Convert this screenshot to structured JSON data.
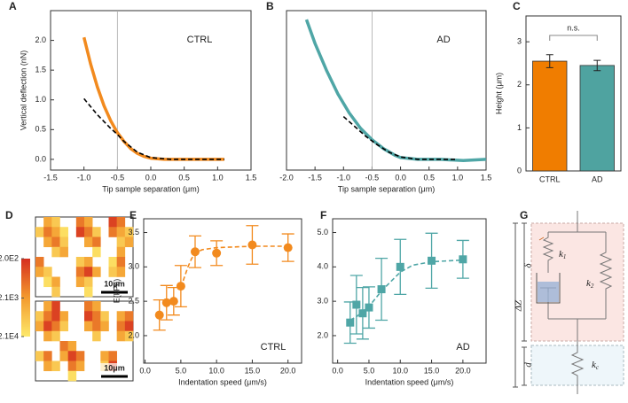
{
  "chart_data": [
    {
      "panel": "A",
      "type": "line",
      "annotation": "CTRL",
      "xlabel": "Tip sample separation (μm)",
      "ylabel": "Vertical deflection (nN)",
      "xlim": [
        -1.5,
        1.5
      ],
      "xticks": [
        -1.5,
        {
          "value": -1,
          "label": "-1.0"
        },
        -0.5,
        {
          "value": 0,
          "label": "0.0"
        },
        0.5,
        {
          "value": 1,
          "label": "1.0"
        },
        1.5
      ],
      "ylim": [
        -0.18,
        2.5
      ],
      "yticks": [
        {
          "value": 0,
          "label": "0.0"
        },
        0.5,
        {
          "value": 1,
          "label": "1.0"
        },
        1.5,
        {
          "value": 2,
          "label": "2.0"
        }
      ],
      "vline": -0.5,
      "series": [
        {
          "color": "#f28a1e",
          "x": [
            -1,
            -0.9,
            -0.8,
            -0.7,
            -0.6,
            -0.5,
            -0.4,
            -0.3,
            -0.2,
            -0.1,
            0,
            0.2,
            0.5,
            0.8,
            1.1
          ],
          "values": [
            2.05,
            1.6,
            1.22,
            0.9,
            0.65,
            0.45,
            0.3,
            0.18,
            0.1,
            0.05,
            0.02,
            0,
            0,
            0,
            0
          ]
        },
        {
          "color": "#000000",
          "dash": true,
          "x": [
            -1,
            -0.8,
            -0.6,
            -0.5,
            -0.4,
            -0.2,
            0,
            0.3,
            1.1
          ],
          "values": [
            1.02,
            0.75,
            0.52,
            0.42,
            0.3,
            0.12,
            0.03,
            0,
            0
          ]
        }
      ]
    },
    {
      "panel": "B",
      "type": "line",
      "annotation": "AD",
      "xlabel": "Tip sample separation (μm)",
      "xlim": [
        -2,
        1.5
      ],
      "xticks": [
        {
          "value": -2,
          "label": "-2.0"
        },
        -1.5,
        {
          "value": -1,
          "label": "-1.0"
        },
        -0.5,
        {
          "value": 0,
          "label": "0.0"
        },
        0.5,
        {
          "value": 1,
          "label": "1.0"
        },
        1.5
      ],
      "ylim": [
        -0.18,
        2.5
      ],
      "vline": -0.5,
      "series": [
        {
          "color": "#4fa6a6",
          "x": [
            -1.65,
            -1.5,
            -1.3,
            -1.1,
            -0.9,
            -0.7,
            -0.5,
            -0.3,
            -0.1,
            0,
            0.3,
            0.7,
            1.1,
            1.5
          ],
          "values": [
            2.35,
            1.95,
            1.5,
            1.1,
            0.78,
            0.52,
            0.33,
            0.18,
            0.07,
            0.03,
            0,
            0,
            -0.02,
            0
          ]
        },
        {
          "color": "#000000",
          "dash": true,
          "x": [
            -1,
            -0.8,
            -0.6,
            -0.4,
            -0.2,
            0,
            0.3,
            1
          ],
          "values": [
            0.72,
            0.55,
            0.38,
            0.24,
            0.12,
            0.04,
            0,
            0
          ]
        }
      ]
    },
    {
      "panel": "C",
      "type": "bar",
      "annotation": "n.s.",
      "ylabel": "Height (μm)",
      "categories": [
        "CTRL",
        "AD"
      ],
      "values": [
        2.55,
        2.45
      ],
      "errors": [
        0.15,
        0.12
      ],
      "colors": [
        "#f07d00",
        "#4fa3a0"
      ],
      "ylim": [
        0,
        3.6
      ],
      "yticks": [
        0,
        1,
        2,
        3
      ]
    },
    {
      "panel": "D",
      "type": "heatmap",
      "zlim": [
        200,
        21000
      ],
      "log": true,
      "colors": [
        "#d62f1f",
        "#f39a2e",
        "#fde96b"
      ],
      "colorbar_ticks": [
        {
          "value": 200,
          "label": "2.0E2"
        },
        {
          "value": 2100,
          "label": "2.1E3"
        },
        {
          "value": 21000,
          "label": "2.1E4"
        }
      ],
      "maps": [
        {
          "scalebar": "10μm",
          "grid": [
            [
              null,
              3000,
              8000,
              null,
              null,
              1000,
              3000,
              null,
              null,
              300,
              1000,
              null
            ],
            [
              8000,
              1000,
              3000,
              15000,
              null,
              300,
              1000,
              8000,
              null,
              1000,
              3000,
              8000
            ],
            [
              null,
              3000,
              1000,
              8000,
              null,
              null,
              3000,
              1000,
              null,
              null,
              8000,
              3000
            ],
            [
              null,
              null,
              8000,
              3000,
              null,
              null,
              null,
              15000,
              null,
              null,
              3000,
              null
            ],
            [
              1000,
              null,
              null,
              null,
              null,
              8000,
              3000,
              null,
              null,
              15000,
              1000,
              null
            ],
            [
              3000,
              8000,
              null,
              null,
              null,
              1000,
              300,
              3000,
              null,
              8000,
              3000,
              null
            ],
            [
              null,
              15000,
              3000,
              null,
              null,
              3000,
              8000,
              null,
              null,
              null,
              null,
              null
            ],
            [
              null,
              null,
              8000,
              null,
              null,
              null,
              15000,
              null,
              null,
              null,
              null,
              null
            ]
          ]
        },
        {
          "scalebar": "10μm",
          "grid": [
            [
              null,
              3000,
              300,
              null,
              null,
              null,
              1000,
              3000,
              null,
              null,
              null,
              null
            ],
            [
              8000,
              1000,
              300,
              3000,
              null,
              null,
              300,
              1000,
              8000,
              null,
              3000,
              1000
            ],
            [
              3000,
              300,
              1000,
              8000,
              null,
              null,
              3000,
              1000,
              3000,
              null,
              1000,
              300
            ],
            [
              null,
              3000,
              8000,
              null,
              null,
              null,
              null,
              8000,
              null,
              null,
              3000,
              8000
            ],
            [
              null,
              null,
              null,
              1000,
              3000,
              null,
              null,
              null,
              null,
              null,
              null,
              null
            ],
            [
              8000,
              1000,
              null,
              3000,
              300,
              1000,
              null,
              null,
              3000,
              1000,
              null,
              null
            ],
            [
              null,
              3000,
              8000,
              null,
              1000,
              3000,
              null,
              null,
              8000,
              300,
              null,
              null
            ],
            [
              null,
              null,
              null,
              null,
              15000,
              null,
              null,
              null,
              null,
              null,
              null,
              null
            ]
          ]
        }
      ]
    },
    {
      "panel": "E",
      "type": "scatter",
      "annotation": "CTRL",
      "xlabel": "Indentation speed (μm/s)",
      "ylabel": "E(kPa)",
      "xlim": [
        -0.2,
        21.9
      ],
      "xticks": [
        {
          "value": 0,
          "label": "0.0"
        },
        {
          "value": 5,
          "label": "5.0"
        },
        {
          "value": 10,
          "label": "10.0"
        },
        {
          "value": 15,
          "label": "15.0"
        },
        {
          "value": 20,
          "label": "20.0"
        }
      ],
      "ylim": [
        1.6,
        3.7
      ],
      "yticks": [
        {
          "value": 2,
          "label": "2.0"
        },
        2.5,
        {
          "value": 3,
          "label": "3.0"
        },
        3.5
      ],
      "series": [
        {
          "color": "#f28a1e",
          "marker": "circle",
          "x": [
            2,
            3,
            4,
            5,
            7,
            10,
            15,
            20
          ],
          "values": [
            2.3,
            2.48,
            2.5,
            2.72,
            3.22,
            3.2,
            3.32,
            3.28
          ],
          "errors": [
            0.22,
            0.25,
            0.2,
            0.3,
            0.23,
            0.18,
            0.28,
            0.2
          ]
        },
        {
          "color": "#f28a1e",
          "dash": true,
          "x": [
            5,
            5.5,
            6,
            6.5,
            7,
            8,
            10,
            15,
            20
          ],
          "values": [
            2.7,
            2.85,
            3,
            3.12,
            3.2,
            3.25,
            3.28,
            3.3,
            3.3
          ]
        }
      ]
    },
    {
      "panel": "F",
      "type": "scatter",
      "annotation": "AD",
      "xlabel": "Indentation speed (μm/s)",
      "xlim": [
        -0.8,
        23.7
      ],
      "xticks": [
        {
          "value": 0,
          "label": "0.0"
        },
        {
          "value": 5,
          "label": "5.0"
        },
        {
          "value": 10,
          "label": "10.0"
        },
        {
          "value": 15,
          "label": "15.0"
        },
        {
          "value": 20,
          "label": "20.0"
        }
      ],
      "ylim": [
        1.2,
        5.4
      ],
      "yticks": [
        {
          "value": 2,
          "label": "2.0"
        },
        {
          "value": 3,
          "label": "3.0"
        },
        {
          "value": 4,
          "label": "4.0"
        },
        {
          "value": 5,
          "label": "5.0"
        }
      ],
      "series": [
        {
          "color": "#4fa6a6",
          "marker": "square",
          "x": [
            2,
            3,
            4,
            5,
            7,
            10,
            15,
            20
          ],
          "values": [
            2.38,
            2.9,
            2.65,
            2.82,
            3.35,
            4,
            4.18,
            4.22
          ],
          "errors": [
            0.6,
            0.85,
            0.75,
            0.6,
            0.9,
            0.8,
            0.8,
            0.55
          ]
        },
        {
          "color": "#4fa6a6",
          "dash": true,
          "x": [
            2,
            3,
            4,
            5,
            7,
            10,
            12,
            15,
            20
          ],
          "values": [
            2.45,
            2.55,
            2.7,
            2.85,
            3.3,
            3.85,
            4.05,
            4.15,
            4.2
          ]
        }
      ]
    }
  ],
  "diagram": {
    "panel": "G",
    "labels": [
      "ΔZ",
      "δ",
      "d"
    ],
    "springs": [
      {
        "symbol": "k",
        "sub": "1"
      },
      {
        "symbol": "k",
        "sub": "2"
      },
      {
        "symbol": "k",
        "sub": "c"
      }
    ]
  }
}
